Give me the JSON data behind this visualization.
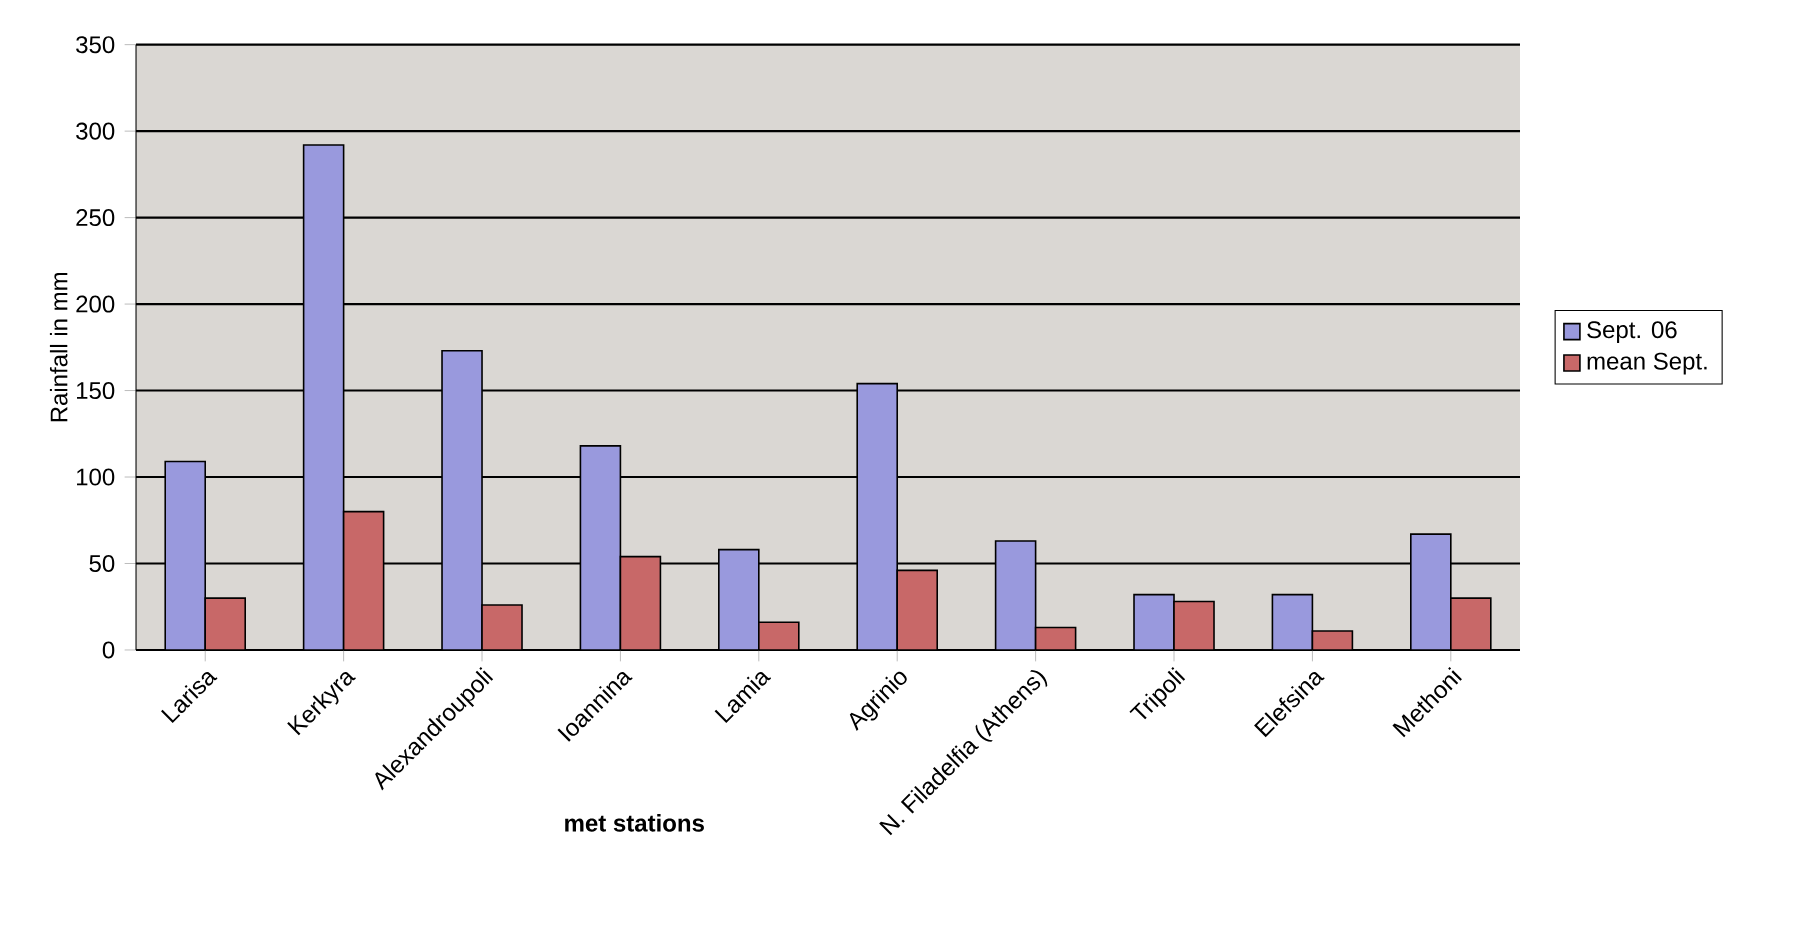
{
  "chart_data": {
    "type": "bar",
    "xlabel": "met stations",
    "ylabel": "Rainfall in mm",
    "categories": [
      "Larisa",
      "Kerkyra",
      "Alexandroupoli",
      "Ioannina",
      "Lamia",
      "Agrinio",
      "N. Filadelfia (Athens)",
      "Tripoli",
      "Elefsina",
      "Methoni"
    ],
    "series": [
      {
        "name": "Sept. 06",
        "color": "#9999dd",
        "values": [
          109,
          292,
          173,
          118,
          58,
          154,
          63,
          32,
          32,
          67
        ]
      },
      {
        "name": "mean Sept.",
        "color": "#c86868",
        "values": [
          30,
          80,
          26,
          54,
          16,
          46,
          13,
          28,
          11,
          30
        ]
      }
    ],
    "ylim": [
      0,
      350
    ],
    "yticks": [
      0,
      50,
      100,
      150,
      200,
      250,
      300,
      350
    ],
    "grid": "y",
    "legend": "right"
  }
}
